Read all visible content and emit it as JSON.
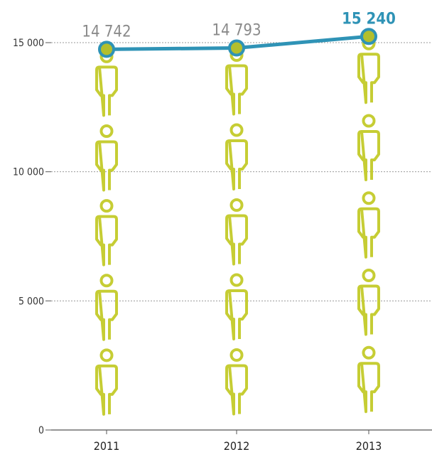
{
  "chart_data": {
    "type": "line",
    "title": "",
    "xlabel": "",
    "ylabel": "",
    "categories": [
      "2011",
      "2012",
      "2013"
    ],
    "series": [
      {
        "values": [
          14742,
          14793,
          15240
        ]
      }
    ],
    "value_labels": [
      "14 742",
      "14 793",
      "15 240"
    ],
    "highlight_index": 2,
    "yticks": [
      {
        "value": 0,
        "label": "0"
      },
      {
        "value": 5000,
        "label": "5 000"
      },
      {
        "value": 10000,
        "label": "10 000"
      },
      {
        "value": 15000,
        "label": "15 000"
      }
    ],
    "ylim": [
      0,
      15500
    ],
    "grid": true,
    "legend": "none",
    "icon": "person-icon",
    "person_icons_per_column": [
      5,
      5,
      5
    ],
    "colors": {
      "line": "#2f93b6",
      "marker_fill": "#b3bf2d",
      "marker_stroke": "#2f93b6",
      "person": "#c6cd34",
      "grid": "#9a9a9a",
      "value_label": "#8a8a8a",
      "highlight_label": "#2f93b6"
    }
  }
}
